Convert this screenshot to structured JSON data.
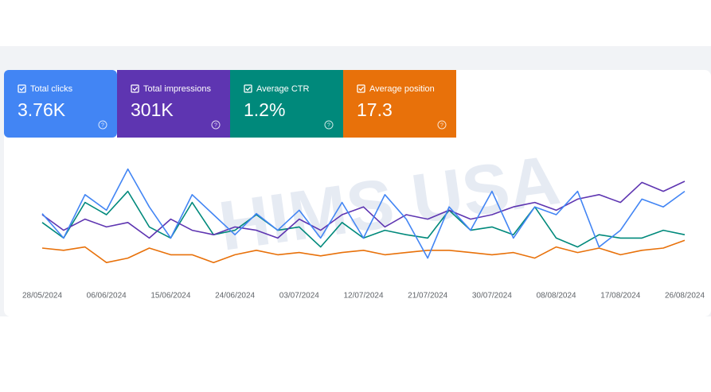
{
  "cards": [
    {
      "label": "Total clicks",
      "value": "3.76K",
      "color": "#4285f4"
    },
    {
      "label": "Total impressions",
      "value": "301K",
      "color": "#5e35b1"
    },
    {
      "label": "Average CTR",
      "value": "1.2%",
      "color": "#00897b"
    },
    {
      "label": "Average position",
      "value": "17.3",
      "color": "#e8710a"
    }
  ],
  "watermark": "HIMS USA",
  "chart_data": {
    "type": "line",
    "categories": [
      "28/05/2024",
      null,
      null,
      "06/06/2024",
      null,
      null,
      "15/06/2024",
      null,
      null,
      "24/06/2024",
      null,
      null,
      "03/07/2024",
      null,
      null,
      "12/07/2024",
      null,
      null,
      "21/07/2024",
      null,
      null,
      "30/07/2024",
      null,
      null,
      "08/08/2024",
      null,
      null,
      "17/08/2024",
      null,
      null,
      "26/08/2024"
    ],
    "ylim": [
      0,
      100
    ],
    "series": [
      {
        "name": "Total clicks",
        "color": "#4285f4",
        "values": [
          51,
          29,
          68,
          54,
          91,
          57,
          29,
          68,
          50,
          32,
          51,
          36,
          54,
          29,
          61,
          29,
          68,
          46,
          11,
          57,
          36,
          71,
          29,
          57,
          50,
          71,
          21,
          36,
          64,
          57,
          71
        ]
      },
      {
        "name": "Total impressions",
        "color": "#5e35b1",
        "values": [
          50,
          36,
          46,
          39,
          43,
          29,
          46,
          36,
          32,
          39,
          36,
          29,
          46,
          36,
          50,
          57,
          39,
          50,
          46,
          54,
          46,
          50,
          57,
          61,
          54,
          64,
          68,
          61,
          79,
          71,
          80
        ]
      },
      {
        "name": "Average CTR",
        "color": "#00897b",
        "values": [
          43,
          29,
          61,
          50,
          71,
          39,
          29,
          61,
          32,
          36,
          50,
          36,
          39,
          21,
          43,
          29,
          36,
          32,
          29,
          54,
          36,
          39,
          32,
          57,
          29,
          21,
          32,
          29,
          29,
          36,
          32
        ]
      },
      {
        "name": "Average position",
        "color": "#e8710a",
        "values": [
          20,
          18,
          21,
          7,
          11,
          20,
          14,
          14,
          7,
          14,
          18,
          14,
          16,
          13,
          16,
          18,
          14,
          16,
          18,
          18,
          16,
          14,
          16,
          11,
          21,
          16,
          20,
          14,
          18,
          20,
          27
        ]
      }
    ]
  }
}
